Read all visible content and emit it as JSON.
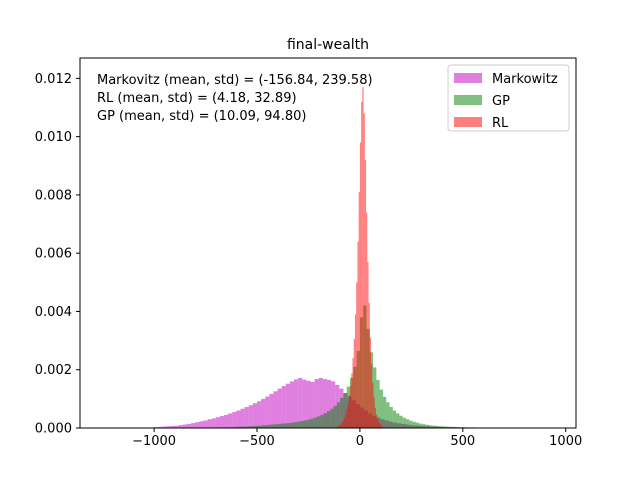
{
  "chart_data": {
    "type": "histogram",
    "title": "final-wealth",
    "xlabel": "",
    "ylabel": "",
    "xlim": [
      -1360,
      1050
    ],
    "ylim": [
      0,
      0.0127
    ],
    "xticks": [
      -1000,
      -500,
      0,
      500,
      1000
    ],
    "xtick_labels": [
      "−1000",
      "−500",
      "0",
      "500",
      "1000"
    ],
    "yticks": [
      0,
      0.002,
      0.004,
      0.006,
      0.008,
      0.01,
      0.012
    ],
    "ytick_labels": [
      "0.000",
      "0.002",
      "0.004",
      "0.006",
      "0.008",
      "0.010",
      "0.012"
    ],
    "grid": false,
    "legend_position": "upper right",
    "annotations": [
      "Markovitz (mean, std) = (-156.84, 239.58)",
      "RL (mean, std) = (4.18, 32.89)",
      "GP (mean, std) = (10.09, 94.80)"
    ],
    "series": [
      {
        "name": "Markowitz",
        "color": "#bf00bf",
        "alpha": 0.5,
        "bin_width": 20,
        "bins": [
          [
            -1000,
            3e-05
          ],
          [
            -980,
            4e-05
          ],
          [
            -960,
            5e-05
          ],
          [
            -940,
            6e-05
          ],
          [
            -920,
            7e-05
          ],
          [
            -900,
            8e-05
          ],
          [
            -880,
            0.0001
          ],
          [
            -860,
            0.00012
          ],
          [
            -840,
            0.00014
          ],
          [
            -820,
            0.00017
          ],
          [
            -800,
            0.0002
          ],
          [
            -780,
            0.00023
          ],
          [
            -760,
            0.00026
          ],
          [
            -740,
            0.0003
          ],
          [
            -720,
            0.00033
          ],
          [
            -700,
            0.00037
          ],
          [
            -680,
            0.00041
          ],
          [
            -660,
            0.00045
          ],
          [
            -640,
            0.0005
          ],
          [
            -620,
            0.00055
          ],
          [
            -600,
            0.0006
          ],
          [
            -580,
            0.00066
          ],
          [
            -560,
            0.00072
          ],
          [
            -540,
            0.00078
          ],
          [
            -520,
            0.00085
          ],
          [
            -500,
            0.00092
          ],
          [
            -480,
            0.001
          ],
          [
            -460,
            0.00108
          ],
          [
            -440,
            0.00117
          ],
          [
            -420,
            0.00126
          ],
          [
            -400,
            0.00135
          ],
          [
            -380,
            0.00144
          ],
          [
            -360,
            0.00152
          ],
          [
            -340,
            0.0016
          ],
          [
            -320,
            0.00167
          ],
          [
            -300,
            0.00172
          ],
          [
            -280,
            0.00166
          ],
          [
            -260,
            0.00162
          ],
          [
            -240,
            0.00158
          ],
          [
            -220,
            0.00168
          ],
          [
            -200,
            0.00172
          ],
          [
            -180,
            0.00168
          ],
          [
            -160,
            0.00165
          ],
          [
            -140,
            0.0016
          ],
          [
            -120,
            0.00148
          ],
          [
            -100,
            0.00135
          ],
          [
            -80,
            0.0012
          ],
          [
            -60,
            0.00108
          ],
          [
            -40,
            0.00095
          ],
          [
            -20,
            0.00082
          ],
          [
            0,
            0.0007
          ],
          [
            20,
            0.0006
          ],
          [
            40,
            0.0005
          ],
          [
            60,
            0.00042
          ],
          [
            80,
            0.00036
          ],
          [
            100,
            0.0003
          ],
          [
            120,
            0.00026
          ],
          [
            140,
            0.00022
          ],
          [
            160,
            0.00019
          ],
          [
            180,
            0.00016
          ],
          [
            200,
            0.00014
          ],
          [
            220,
            0.00012
          ],
          [
            240,
            0.0001
          ],
          [
            260,
            9e-05
          ],
          [
            280,
            8e-05
          ],
          [
            300,
            7e-05
          ],
          [
            320,
            6e-05
          ],
          [
            340,
            5e-05
          ],
          [
            360,
            5e-05
          ],
          [
            380,
            4e-05
          ],
          [
            400,
            4e-05
          ],
          [
            420,
            3e-05
          ],
          [
            440,
            3e-05
          ],
          [
            460,
            3e-05
          ],
          [
            480,
            2e-05
          ],
          [
            500,
            2e-05
          ],
          [
            520,
            2e-05
          ],
          [
            540,
            2e-05
          ],
          [
            560,
            1e-05
          ],
          [
            580,
            1e-05
          ],
          [
            600,
            1e-05
          ],
          [
            620,
            1e-05
          ]
        ]
      },
      {
        "name": "GP",
        "color": "#008000",
        "alpha": 0.5,
        "bin_width": 16,
        "bins": [
          [
            -704,
            2e-05
          ],
          [
            -688,
            2e-05
          ],
          [
            -672,
            2e-05
          ],
          [
            -656,
            3e-05
          ],
          [
            -640,
            3e-05
          ],
          [
            -624,
            3e-05
          ],
          [
            -608,
            4e-05
          ],
          [
            -592,
            4e-05
          ],
          [
            -576,
            5e-05
          ],
          [
            -560,
            5e-05
          ],
          [
            -544,
            6e-05
          ],
          [
            -528,
            6e-05
          ],
          [
            -512,
            7e-05
          ],
          [
            -496,
            8e-05
          ],
          [
            -480,
            9e-05
          ],
          [
            -464,
            0.0001
          ],
          [
            -448,
            0.00011
          ],
          [
            -432,
            0.00012
          ],
          [
            -416,
            0.00013
          ],
          [
            -400,
            0.00014
          ],
          [
            -384,
            0.00015
          ],
          [
            -368,
            0.00016
          ],
          [
            -352,
            0.00017
          ],
          [
            -336,
            0.00018
          ],
          [
            -320,
            0.0002
          ],
          [
            -304,
            0.00022
          ],
          [
            -288,
            0.00024
          ],
          [
            -272,
            0.00026
          ],
          [
            -256,
            0.00029
          ],
          [
            -240,
            0.00032
          ],
          [
            -224,
            0.00036
          ],
          [
            -208,
            0.0004
          ],
          [
            -192,
            0.00045
          ],
          [
            -176,
            0.00051
          ],
          [
            -160,
            0.00058
          ],
          [
            -144,
            0.00066
          ],
          [
            -128,
            0.00076
          ],
          [
            -112,
            0.00088
          ],
          [
            -96,
            0.00103
          ],
          [
            -80,
            0.0012
          ],
          [
            -64,
            0.00142
          ],
          [
            -48,
            0.00172
          ],
          [
            -32,
            0.0021
          ],
          [
            -16,
            0.00265
          ],
          [
            0,
            0.0038
          ],
          [
            16,
            0.0042
          ],
          [
            32,
            0.0034
          ],
          [
            48,
            0.0026
          ],
          [
            64,
            0.00208
          ],
          [
            80,
            0.00165
          ],
          [
            96,
            0.00132
          ],
          [
            112,
            0.00107
          ],
          [
            128,
            0.00088
          ],
          [
            144,
            0.00072
          ],
          [
            160,
            0.0006
          ],
          [
            176,
            0.0005
          ],
          [
            192,
            0.00042
          ],
          [
            208,
            0.00035
          ],
          [
            224,
            0.0003
          ],
          [
            240,
            0.00025
          ],
          [
            256,
            0.00021
          ],
          [
            272,
            0.00018
          ],
          [
            288,
            0.00015
          ],
          [
            304,
            0.00013
          ],
          [
            320,
            0.00011
          ],
          [
            336,
            9e-05
          ],
          [
            352,
            8e-05
          ],
          [
            368,
            7e-05
          ],
          [
            384,
            6e-05
          ],
          [
            400,
            5e-05
          ],
          [
            416,
            5e-05
          ],
          [
            432,
            4e-05
          ],
          [
            448,
            4e-05
          ],
          [
            464,
            3e-05
          ],
          [
            480,
            3e-05
          ],
          [
            496,
            3e-05
          ],
          [
            512,
            2e-05
          ],
          [
            528,
            2e-05
          ],
          [
            544,
            2e-05
          ],
          [
            560,
            2e-05
          ]
        ]
      },
      {
        "name": "RL",
        "color": "#ff0000",
        "alpha": 0.5,
        "bin_width": 6,
        "bins": [
          [
            -114,
            4e-05
          ],
          [
            -108,
            6e-05
          ],
          [
            -102,
            9e-05
          ],
          [
            -96,
            0.00013
          ],
          [
            -90,
            0.00018
          ],
          [
            -84,
            0.00026
          ],
          [
            -78,
            0.00036
          ],
          [
            -72,
            0.00048
          ],
          [
            -66,
            0.00065
          ],
          [
            -60,
            0.00086
          ],
          [
            -54,
            0.00112
          ],
          [
            -48,
            0.00145
          ],
          [
            -42,
            0.00188
          ],
          [
            -36,
            0.0024
          ],
          [
            -30,
            0.00305
          ],
          [
            -24,
            0.0039
          ],
          [
            -18,
            0.005
          ],
          [
            -12,
            0.0064
          ],
          [
            -6,
            0.0081
          ],
          [
            0,
            0.0098
          ],
          [
            6,
            0.0112
          ],
          [
            12,
            0.0117
          ],
          [
            18,
            0.0108
          ],
          [
            24,
            0.0092
          ],
          [
            30,
            0.0074
          ],
          [
            36,
            0.0057
          ],
          [
            42,
            0.0043
          ],
          [
            48,
            0.0031
          ],
          [
            54,
            0.0022
          ],
          [
            60,
            0.00155
          ],
          [
            66,
            0.00105
          ],
          [
            72,
            0.0007
          ],
          [
            78,
            0.00046
          ],
          [
            84,
            0.0003
          ],
          [
            90,
            0.0002
          ],
          [
            96,
            0.00013
          ],
          [
            102,
            8e-05
          ],
          [
            108,
            5e-05
          ]
        ]
      }
    ]
  }
}
